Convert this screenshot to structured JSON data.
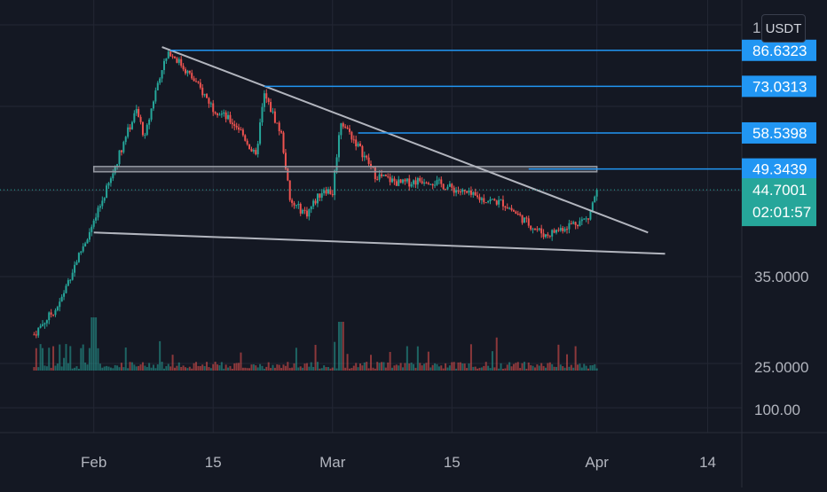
{
  "toolbar": {
    "currency_label": "USDT"
  },
  "colors": {
    "background": "#141823",
    "grid": "#232734",
    "up": "#26a69a",
    "down": "#ef5350",
    "level_line": "#2196f3",
    "trendline": "#b2b5be",
    "last_price_bg": "#26a69a"
  },
  "chart_data": {
    "type": "candlestick",
    "x_range": [
      "2023-01-21",
      "2023-04-18"
    ],
    "x_ticks": [
      {
        "date": "2023-02-01",
        "label": "Feb"
      },
      {
        "date": "2023-02-15",
        "label": "15"
      },
      {
        "date": "2023-03-01",
        "label": "Mar"
      },
      {
        "date": "2023-03-15",
        "label": "15"
      },
      {
        "date": "2023-04-01",
        "label": "Apr"
      },
      {
        "date": "2023-04-14",
        "label": "14"
      }
    ],
    "y_axis": {
      "scale": "log",
      "tick_labels": [
        "100.00",
        "35.0000",
        "25.0000"
      ],
      "partial_top_label": "1"
    },
    "price_path": [
      [
        "2023-01-25",
        22.5
      ],
      [
        "2023-01-28",
        26
      ],
      [
        "2023-02-01",
        38
      ],
      [
        "2023-02-03",
        47
      ],
      [
        "2023-02-06",
        65
      ],
      [
        "2023-02-07",
        57
      ],
      [
        "2023-02-09",
        80
      ],
      [
        "2023-02-10",
        86
      ],
      [
        "2023-02-12",
        78
      ],
      [
        "2023-02-15",
        66
      ],
      [
        "2023-02-18",
        60
      ],
      [
        "2023-02-20",
        52
      ],
      [
        "2023-02-21",
        70
      ],
      [
        "2023-02-23",
        58
      ],
      [
        "2023-02-24",
        42
      ],
      [
        "2023-02-26",
        40
      ],
      [
        "2023-02-28",
        45
      ],
      [
        "2023-03-01",
        44
      ],
      [
        "2023-03-02",
        62
      ],
      [
        "2023-03-04",
        55
      ],
      [
        "2023-03-06",
        48
      ],
      [
        "2023-03-09",
        46
      ],
      [
        "2023-03-12",
        47
      ],
      [
        "2023-03-15",
        45
      ],
      [
        "2023-03-18",
        43
      ],
      [
        "2023-03-21",
        42
      ],
      [
        "2023-03-24",
        38
      ],
      [
        "2023-03-26",
        36
      ],
      [
        "2023-03-29",
        38
      ],
      [
        "2023-03-31",
        39
      ],
      [
        "2023-04-01",
        44.7
      ]
    ],
    "horizontal_levels": [
      {
        "label": "86.6323",
        "value": 86.6323,
        "from_date": "2023-02-10"
      },
      {
        "label": "73.0313",
        "value": 73.0313,
        "from_date": "2023-02-21"
      },
      {
        "label": "58.5398",
        "value": 58.5398,
        "from_date": "2023-03-04"
      },
      {
        "label": "49.3439",
        "value": 49.3439,
        "from_date": "2023-03-24"
      }
    ],
    "support_zone": {
      "value": 49.3,
      "from_date": "2023-02-01",
      "to_date": "2023-04-01"
    },
    "trendlines": [
      {
        "name": "upper",
        "from": [
          "2023-02-09",
          88
        ],
        "to": [
          "2023-04-07",
          36.5
        ]
      },
      {
        "name": "lower",
        "from": [
          "2023-02-01",
          36.5
        ],
        "to": [
          "2023-04-09",
          33
        ]
      }
    ],
    "last_price": {
      "value": "44.7001",
      "countdown": "02:01:57"
    },
    "volume": {
      "visible": true
    }
  }
}
